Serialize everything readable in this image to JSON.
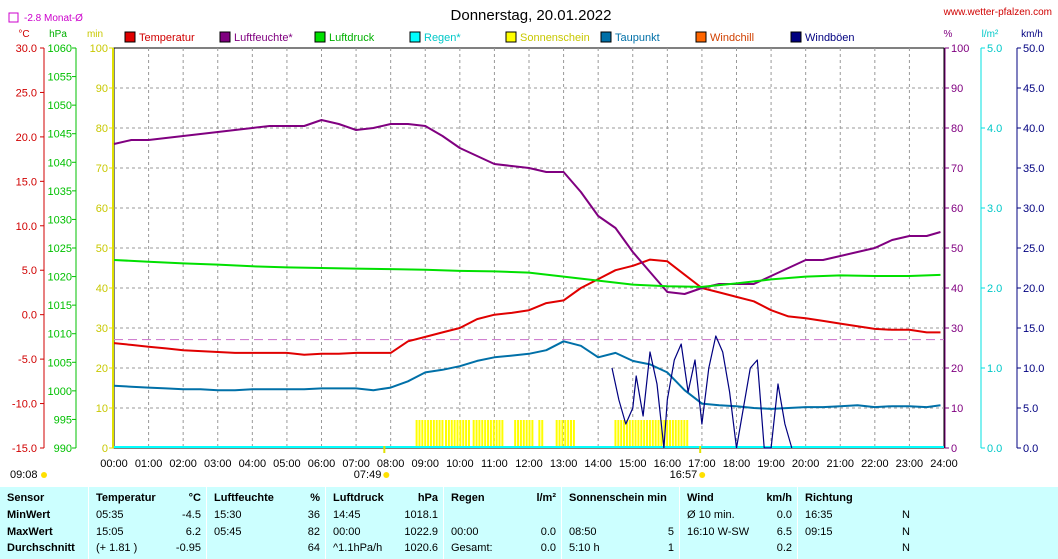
{
  "header": {
    "title": "Donnerstag, 20.01.2022",
    "site": "www.wetter-pfalzen.com",
    "monthly_avg": "-2.8 Monat-Ø"
  },
  "units": {
    "temp": "°C",
    "pressure": "hPa",
    "sun": "min",
    "humidity": "%",
    "rain": "l/m²",
    "wind": "km/h"
  },
  "colors": {
    "temperature": "#e00000",
    "humidity": "#800080",
    "pressure": "#00e000",
    "rain": "#00ffff",
    "sunshine": "#ffff00",
    "dewpoint": "#0070a8",
    "windchill": "#ff6600",
    "windgust": "#000080",
    "avg_line": "#d080d0"
  },
  "chart_data": {
    "type": "line",
    "x_label_times": [
      "00:00",
      "01:00",
      "02:00",
      "03:00",
      "04:00",
      "05:00",
      "06:00",
      "07:00",
      "08:00",
      "09:00",
      "10:00",
      "11:00",
      "12:00",
      "13:00",
      "14:00",
      "15:00",
      "16:00",
      "17:00",
      "18:00",
      "19:00",
      "20:00",
      "21:00",
      "22:00",
      "23:00",
      "24:00"
    ],
    "axes": {
      "temperature": {
        "unit": "°C",
        "range": [
          -15,
          30
        ],
        "ticks": [
          "30.0",
          "25.0",
          "20.0",
          "15.0",
          "10.0",
          "5.0",
          "0.0",
          "-5.0",
          "-10.0",
          "-15.0"
        ]
      },
      "pressure": {
        "unit": "hPa",
        "range": [
          990,
          1060
        ],
        "ticks": [
          "1060",
          "1055",
          "1050",
          "1045",
          "1040",
          "1035",
          "1030",
          "1025",
          "1020",
          "1015",
          "1010",
          "1005",
          "1000",
          "995",
          "990"
        ]
      },
      "sunshine": {
        "unit": "min",
        "range": [
          0,
          100
        ],
        "ticks": [
          "100",
          "90",
          "80",
          "70",
          "60",
          "50",
          "40",
          "30",
          "20",
          "10",
          "0"
        ]
      },
      "humidity": {
        "unit": "%",
        "range": [
          0,
          100
        ],
        "ticks": [
          "100",
          "90",
          "80",
          "70",
          "60",
          "50",
          "40",
          "30",
          "20",
          "10",
          "0"
        ]
      },
      "rain": {
        "unit": "l/m²",
        "range": [
          0,
          5
        ],
        "ticks": [
          "5.0",
          "4.0",
          "3.0",
          "2.0",
          "1.0",
          "0.0"
        ]
      },
      "wind": {
        "unit": "km/h",
        "range": [
          0,
          50
        ],
        "ticks": [
          "50.0",
          "45.0",
          "40.0",
          "35.0",
          "30.0",
          "25.0",
          "20.0",
          "15.0",
          "10.0",
          "5.0",
          "0.0"
        ]
      }
    },
    "monthly_avg_temp": -2.8,
    "sunrise": "07:49",
    "sunset": "16:57",
    "extra_time_label": "09:08",
    "legend": [
      "Temperatur",
      "Luftfeuchte*",
      "Luftdruck",
      "Regen*",
      "Sonnenschein",
      "Taupunkt",
      "Windchill",
      "Windböen"
    ],
    "series": [
      {
        "name": "Temperatur",
        "axis": "temperature",
        "x": [
          0,
          0.5,
          1,
          1.5,
          2,
          2.5,
          3,
          3.5,
          4,
          4.5,
          5,
          5.5,
          6,
          6.5,
          7,
          7.5,
          8,
          8.5,
          9,
          9.5,
          10,
          10.5,
          11,
          11.5,
          12,
          12.5,
          13,
          13.5,
          14,
          14.5,
          15,
          15.5,
          16,
          16.5,
          17,
          17.5,
          18,
          18.5,
          19,
          19.5,
          20,
          20.5,
          21,
          21.5,
          22,
          22.5,
          23,
          23.5,
          23.9
        ],
        "values": [
          -3.2,
          -3.4,
          -3.6,
          -3.8,
          -4.0,
          -4.1,
          -4.2,
          -4.3,
          -4.3,
          -4.3,
          -4.3,
          -4.5,
          -4.4,
          -4.4,
          -4.3,
          -4.3,
          -4.3,
          -3.0,
          -2.5,
          -2.0,
          -1.5,
          -0.5,
          0.0,
          0.2,
          0.5,
          1.3,
          1.6,
          3.0,
          4.0,
          5.0,
          5.5,
          6.2,
          6.0,
          4.5,
          3.0,
          2.5,
          2.0,
          1.5,
          0.5,
          -0.2,
          -0.4,
          -0.7,
          -1.0,
          -1.3,
          -1.6,
          -1.7,
          -1.7,
          -2.0,
          -2.0
        ]
      },
      {
        "name": "Luftfeuchte*",
        "axis": "humidity",
        "x": [
          0,
          0.5,
          1,
          1.5,
          2,
          2.5,
          3,
          3.5,
          4,
          4.5,
          5,
          5.5,
          6,
          6.5,
          7,
          7.5,
          8,
          8.5,
          9,
          9.5,
          10,
          10.5,
          11,
          11.5,
          12,
          12.5,
          13,
          13.5,
          14,
          14.5,
          15,
          15.5,
          16,
          16.5,
          17,
          17.5,
          18,
          18.5,
          19,
          19.5,
          20,
          20.5,
          21,
          21.5,
          22,
          22.5,
          23,
          23.5,
          23.9
        ],
        "values": [
          76,
          77,
          77,
          77.5,
          78,
          78.5,
          79,
          79.5,
          80,
          80.5,
          80.5,
          80.5,
          82,
          81,
          79.5,
          80,
          81,
          81,
          80.5,
          78,
          75,
          73,
          71,
          70.5,
          70,
          69,
          69,
          64,
          58,
          55,
          49,
          44,
          39,
          38.5,
          40,
          41,
          41,
          41,
          43,
          45,
          47,
          47,
          48,
          49,
          50,
          52,
          53,
          53,
          54
        ]
      },
      {
        "name": "Luftdruck",
        "axis": "pressure",
        "x": [
          0,
          1,
          2,
          3,
          4,
          5,
          6,
          7,
          8,
          9,
          10,
          11,
          12,
          13,
          14,
          15,
          16,
          17,
          18,
          19,
          20,
          21,
          22,
          23,
          23.9
        ],
        "values": [
          1022.9,
          1022.6,
          1022.3,
          1022.1,
          1021.8,
          1021.6,
          1021.5,
          1021.4,
          1021.3,
          1021.2,
          1021.0,
          1020.9,
          1020.7,
          1020.0,
          1019.3,
          1018.6,
          1018.3,
          1018.2,
          1018.8,
          1019.5,
          1020.0,
          1020.2,
          1020.1,
          1020.1,
          1020.3
        ]
      },
      {
        "name": "Taupunkt",
        "axis": "temperature",
        "x": [
          0,
          0.5,
          1,
          1.5,
          2,
          2.5,
          3,
          3.5,
          4,
          4.5,
          5,
          5.5,
          6,
          6.5,
          7,
          7.5,
          8,
          8.5,
          9,
          9.5,
          10,
          10.5,
          11,
          11.5,
          12,
          12.5,
          13,
          13.5,
          14,
          14.5,
          15,
          15.5,
          16,
          16.5,
          17,
          17.5,
          18,
          18.5,
          19,
          19.5,
          20,
          20.5,
          21,
          21.5,
          22,
          22.5,
          23,
          23.5,
          23.9
        ],
        "values": [
          -8.0,
          -8.1,
          -8.2,
          -8.3,
          -8.4,
          -8.4,
          -8.5,
          -8.5,
          -8.4,
          -8.4,
          -8.4,
          -8.4,
          -8.3,
          -8.3,
          -8.3,
          -8.5,
          -8.2,
          -7.5,
          -6.5,
          -6.2,
          -5.8,
          -5.2,
          -4.8,
          -4.6,
          -4.4,
          -4.0,
          -3.0,
          -3.5,
          -4.8,
          -4.3,
          -5.2,
          -5.6,
          -6.5,
          -8.5,
          -10.0,
          -10.2,
          -10.3,
          -10.5,
          -10.6,
          -10.5,
          -10.4,
          -10.4,
          -10.3,
          -10.2,
          -10.4,
          -10.3,
          -10.3,
          -10.4,
          -10.2
        ]
      },
      {
        "name": "Windböen",
        "axis": "wind",
        "x": [
          14.4,
          14.6,
          14.8,
          15.0,
          15.1,
          15.3,
          15.5,
          15.7,
          15.9,
          16.0,
          16.2,
          16.4,
          16.6,
          16.8,
          17.0,
          17.2,
          17.4,
          17.6,
          17.8,
          18.0,
          18.2,
          18.4,
          18.6,
          18.8,
          19.0,
          19.2,
          19.4,
          19.6
        ],
        "values": [
          10,
          6,
          3,
          5,
          9,
          4,
          12,
          8,
          0,
          6,
          11,
          13,
          7,
          11,
          3,
          10,
          14,
          12,
          7,
          0,
          5,
          10,
          11,
          0,
          0,
          8,
          3,
          0
        ]
      }
    ],
    "sunshine_intervals": [
      [
        8.75,
        9.5
      ],
      [
        9.6,
        10.3
      ],
      [
        10.4,
        11.3
      ],
      [
        11.6,
        12.1
      ],
      [
        12.3,
        12.4
      ],
      [
        12.8,
        13.3
      ],
      [
        14.5,
        16.6
      ]
    ]
  },
  "stats": {
    "blocks": [
      {
        "head": [
          "Sensor"
        ],
        "rows": [
          [
            "MinWert"
          ],
          [
            "MaxWert"
          ],
          [
            "Durchschnitt"
          ]
        ]
      },
      {
        "head": [
          "Temperatur",
          "°C"
        ],
        "rows": [
          [
            "05:35",
            "-4.5"
          ],
          [
            "15:05",
            "6.2"
          ],
          [
            "(+ 1.81 )",
            "-0.95"
          ]
        ]
      },
      {
        "head": [
          "Luftfeuchte",
          "%"
        ],
        "rows": [
          [
            "15:30",
            "36"
          ],
          [
            "05:45",
            "82"
          ],
          [
            "",
            "64"
          ]
        ]
      },
      {
        "head": [
          "Luftdruck",
          "hPa"
        ],
        "rows": [
          [
            "14:45",
            "1018.1"
          ],
          [
            "00:00",
            "1022.9"
          ],
          [
            "^1.1hPa/h",
            "1020.6"
          ]
        ]
      },
      {
        "head": [
          "Regen",
          "l/m²"
        ],
        "rows": [
          [
            "",
            ""
          ],
          [
            "00:00",
            "0.0"
          ],
          [
            "Gesamt:",
            "0.0"
          ]
        ]
      },
      {
        "head": [
          "Sonnenschein min",
          ""
        ],
        "rows": [
          [
            "",
            ""
          ],
          [
            "08:50",
            "5"
          ],
          [
            "5:10 h",
            "1"
          ]
        ]
      },
      {
        "head": [
          "Wind",
          "km/h"
        ],
        "rows": [
          [
            "Ø 10 min.",
            "0.0"
          ],
          [
            "16:10   W-SW",
            "6.5"
          ],
          [
            "",
            "0.2"
          ]
        ]
      },
      {
        "head": [
          "Richtung",
          ""
        ],
        "rows": [
          [
            "16:35",
            "N"
          ],
          [
            "09:15",
            "N"
          ],
          [
            "",
            "N"
          ]
        ]
      }
    ]
  }
}
